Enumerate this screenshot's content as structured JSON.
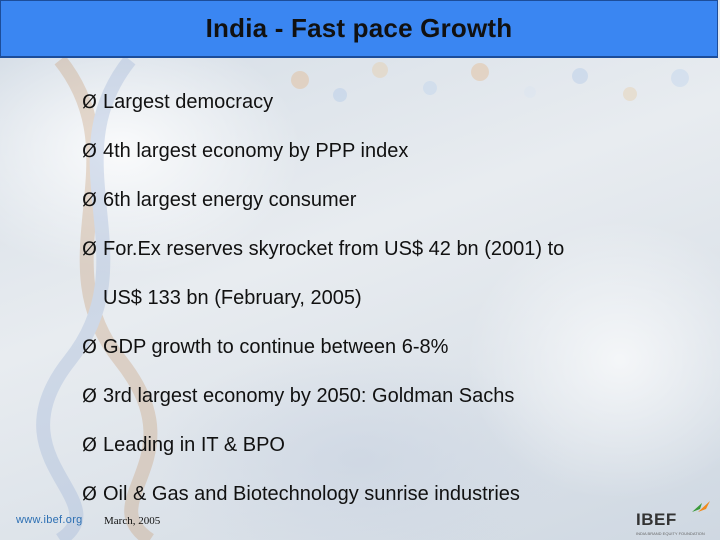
{
  "title": "India - Fast pace Growth",
  "bullet_glyph": "Ø",
  "bullets": [
    "Largest democracy",
    "4th largest economy by PPP index",
    "6th largest energy consumer",
    "For.Ex reserves skyrocket from US$ 42 bn (2001) to",
    "GDP growth to continue between 6-8%",
    "3rd largest economy by 2050: Goldman Sachs",
    "Leading in IT & BPO",
    "Oil & Gas and Biotechnology sunrise industries"
  ],
  "bullet_continuation": "US$ 133 bn (February, 2005)",
  "footer": {
    "url": "www.ibef.org",
    "date": "March, 2005",
    "logo_text": "IBEF",
    "logo_tagline": "INDIA BRAND EQUITY FOUNDATION"
  },
  "colors": {
    "title_bar": "#3a86f2",
    "title_border": "#1c4d9a",
    "logo_green": "#3a9a3a",
    "logo_orange": "#f08a1c"
  }
}
